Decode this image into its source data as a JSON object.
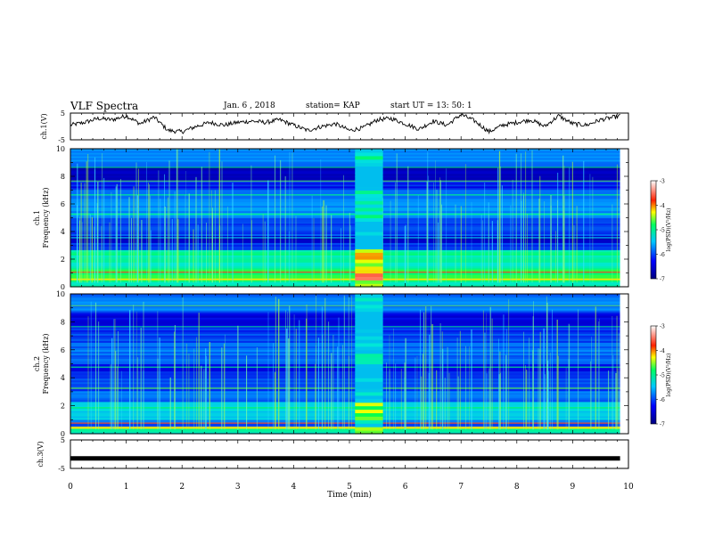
{
  "header": {
    "title": "VLF Spectra",
    "date": "Jan. 6 , 2018",
    "station": "station= KAP",
    "start_time": "start UT = 13: 50: 1"
  },
  "colors": {
    "low": "#00008b",
    "mid": "#00c8ff",
    "high": "#00ff40",
    "peak": "#ff2020",
    "trace": "#000000"
  },
  "chart_data": [
    {
      "type": "line",
      "name": "ch1-waveform",
      "ylabel": "ch.1(V)",
      "ylim": [
        -5,
        5
      ],
      "y_ticks": [
        "5",
        "-5"
      ],
      "xlim": [
        0,
        10
      ],
      "x": [
        0,
        0.25,
        0.5,
        0.75,
        1.0,
        1.25,
        1.5,
        1.75,
        2.0,
        2.25,
        2.5,
        2.75,
        3.0,
        3.25,
        3.5,
        3.75,
        4.0,
        4.25,
        4.5,
        4.75,
        5.0,
        5.25,
        5.5,
        5.75,
        6.0,
        6.25,
        6.5,
        6.75,
        7.0,
        7.25,
        7.5,
        7.75,
        8.0,
        8.25,
        8.5,
        8.75,
        9.0,
        9.25,
        9.5,
        9.75,
        9.85
      ],
      "values": [
        0.5,
        1.5,
        3.0,
        2.5,
        4.0,
        1.0,
        3.5,
        -1.5,
        -2.0,
        0.0,
        1.5,
        0.5,
        1.5,
        2.0,
        1.5,
        2.5,
        0.5,
        -1.5,
        0.0,
        1.0,
        -1.5,
        -0.5,
        2.5,
        3.0,
        1.0,
        -1.0,
        2.0,
        0.5,
        4.5,
        2.0,
        -2.0,
        0.5,
        1.5,
        2.5,
        0.0,
        4.0,
        1.0,
        0.5,
        2.5,
        3.5,
        4.0
      ]
    },
    {
      "type": "heatmap",
      "name": "ch1-spectrogram",
      "ylabel": "ch.1\nFrequency (kHz)",
      "ylim": [
        0,
        10
      ],
      "y_ticks": [
        "0",
        "2",
        "4",
        "6",
        "8",
        "10"
      ],
      "xlim": [
        0,
        10
      ],
      "data_end_min": 9.85,
      "burst_interval_min": [
        5.1,
        5.6
      ],
      "colorbar": {
        "label": "log(PSD)(V²/Hz)",
        "range": [
          -7,
          -3
        ],
        "ticks": [
          "-3",
          "-4",
          "-5",
          "-6",
          "-7"
        ]
      }
    },
    {
      "type": "heatmap",
      "name": "ch2-spectrogram",
      "ylabel": "ch.2\nFrequency (kHz)",
      "ylim": [
        0,
        10
      ],
      "y_ticks": [
        "0",
        "2",
        "4",
        "6",
        "8",
        "10"
      ],
      "xlim": [
        0,
        10
      ],
      "data_end_min": 9.85,
      "burst_interval_min": [
        5.1,
        5.6
      ],
      "colorbar": {
        "label": "log(PSD)(V²/Hz)",
        "range": [
          -7,
          -3
        ],
        "ticks": [
          "-3",
          "-4",
          "-5",
          "-6",
          "-7"
        ]
      }
    },
    {
      "type": "line",
      "name": "ch3-waveform",
      "ylabel": "ch.3(V)",
      "ylim": [
        -5,
        5
      ],
      "y_ticks": [
        "5",
        "-5"
      ],
      "xlim": [
        0,
        10
      ],
      "x": [
        0,
        9.85
      ],
      "values": [
        -1.5,
        -1.5
      ],
      "xlabel": "Time (min)",
      "x_ticks": [
        "0",
        "1",
        "2",
        "3",
        "4",
        "5",
        "6",
        "7",
        "8",
        "9",
        "10"
      ]
    }
  ]
}
